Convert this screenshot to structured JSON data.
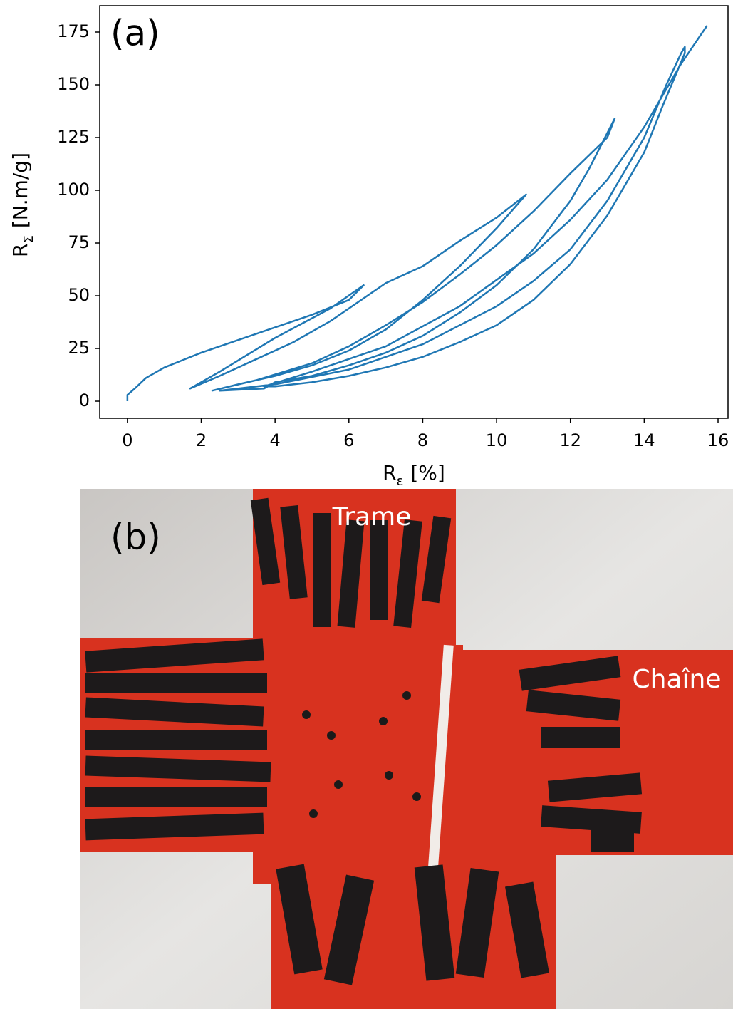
{
  "chart_data": {
    "type": "line",
    "annotation": "(a)",
    "xlabel": {
      "base": "R",
      "sub": "ε",
      "unit": "[%]"
    },
    "ylabel": {
      "base": "R",
      "sub": "Σ",
      "unit": "[N.m/g]"
    },
    "xlim": [
      -0.75,
      16.27
    ],
    "ylim": [
      -8.1,
      187.5
    ],
    "xticks": [
      0,
      2,
      4,
      6,
      8,
      10,
      12,
      14,
      16
    ],
    "yticks": [
      0,
      25,
      50,
      75,
      100,
      125,
      150,
      175
    ],
    "grid": false,
    "series": [
      {
        "color": "#1f77b4",
        "x": [
          0,
          0,
          0.2,
          0.5,
          1,
          2,
          3,
          4,
          5,
          6,
          6.4,
          5.5,
          4,
          2.5,
          1.7,
          2.5,
          3.5,
          4.5,
          5.5,
          6.5,
          7,
          8,
          9,
          10,
          10.8,
          10,
          9,
          8,
          7,
          6,
          5,
          4,
          3,
          2.3,
          3.5,
          5,
          6,
          7,
          8,
          9,
          10,
          11,
          12,
          13,
          13.2,
          12.5,
          12,
          11,
          10,
          9,
          8,
          7,
          6,
          5,
          4,
          3.7,
          2.5,
          4,
          6,
          8,
          10,
          11,
          12,
          13,
          14,
          14.6,
          15,
          15.1,
          15.1,
          14.5,
          14,
          13,
          12,
          11,
          10,
          9,
          8,
          7,
          6,
          5,
          4,
          3.7,
          5,
          7,
          9,
          11,
          12,
          13,
          14,
          15,
          15.7
        ],
        "values": [
          0,
          3,
          6,
          11,
          16,
          23,
          29,
          35,
          41,
          48,
          55,
          44,
          30,
          14,
          6,
          12,
          20,
          28,
          38,
          50,
          56,
          64,
          76,
          87,
          98,
          82,
          64,
          48,
          34,
          24,
          17,
          12,
          8,
          5,
          10,
          18,
          26,
          36,
          47,
          60,
          74,
          90,
          108,
          125,
          134,
          110,
          95,
          72,
          55,
          42,
          31,
          23,
          17,
          12,
          9,
          6,
          5,
          8,
          15,
          27,
          45,
          57,
          72,
          95,
          125,
          150,
          165,
          168,
          165,
          140,
          118,
          88,
          65,
          48,
          36,
          28,
          21,
          16,
          12,
          9,
          7,
          7,
          14,
          26,
          45,
          70,
          86,
          105,
          130,
          160,
          178
        ]
      }
    ]
  },
  "photo": {
    "panel_label": "(b)",
    "labels": [
      "Trame",
      "Chaîne"
    ]
  }
}
